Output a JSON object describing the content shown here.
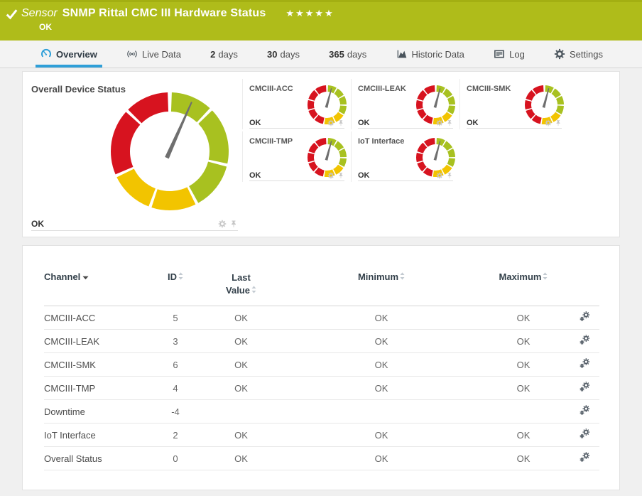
{
  "colors": {
    "header_bg": "#afbc1a",
    "accent_blue": "#2f9fd8",
    "gauge_green": "#a8c120",
    "gauge_yellow": "#f2c400",
    "gauge_red": "#d7131f",
    "needle_gray": "#6f6f6f",
    "tab_icon_gray": "#4a545c",
    "muted_icon_gray": "#c6c6c6",
    "table_icon_gray": "#4d5761",
    "sort_icon_gray": "#c3cad1",
    "sort_caret_dark": "#4a4a4a"
  },
  "header": {
    "kind": "Sensor",
    "title": "SNMP Rittal CMC III Hardware Status",
    "status": "OK",
    "stars": "★★★★★"
  },
  "tabs": [
    {
      "id": "overview",
      "label": "Overview",
      "icon": "gauge-icon",
      "active": true
    },
    {
      "id": "live-data",
      "label": "Live Data",
      "icon": "broadcast-icon",
      "active": false
    },
    {
      "id": "2-days",
      "bold": "2",
      "label": "days",
      "active": false
    },
    {
      "id": "30-days",
      "bold": "30",
      "label": "days",
      "active": false
    },
    {
      "id": "365-days",
      "bold": "365",
      "label": "days",
      "active": false
    },
    {
      "id": "historic-data",
      "label": "Historic Data",
      "icon": "area-chart-icon",
      "active": false
    },
    {
      "id": "log",
      "label": "Log",
      "icon": "log-icon",
      "active": false
    },
    {
      "id": "settings",
      "label": "Settings",
      "icon": "gear-icon",
      "active": false
    }
  ],
  "overview": {
    "main_gauge": {
      "title": "Overall Device Status",
      "status": "OK",
      "needle_deg": 24,
      "segments": [
        {
          "color": "green",
          "start": 2,
          "end": 43
        },
        {
          "color": "green",
          "start": 46,
          "end": 102
        },
        {
          "color": "green",
          "start": 105,
          "end": 151
        },
        {
          "color": "yellow",
          "start": 154,
          "end": 198
        },
        {
          "color": "yellow",
          "start": 201,
          "end": 244
        },
        {
          "color": "red",
          "start": 247,
          "end": 312
        },
        {
          "color": "red",
          "start": 315,
          "end": 358
        }
      ]
    },
    "mini_needle_deg": 15,
    "mini_segments": [
      {
        "color": "green",
        "start": 3,
        "end": 29
      },
      {
        "color": "green",
        "start": 33,
        "end": 59
      },
      {
        "color": "green",
        "start": 63,
        "end": 89
      },
      {
        "color": "green",
        "start": 93,
        "end": 119
      },
      {
        "color": "yellow",
        "start": 123,
        "end": 152
      },
      {
        "color": "yellow",
        "start": 156,
        "end": 188
      },
      {
        "color": "red",
        "start": 192,
        "end": 220
      },
      {
        "color": "red",
        "start": 224,
        "end": 252
      },
      {
        "color": "red",
        "start": 256,
        "end": 284
      },
      {
        "color": "red",
        "start": 288,
        "end": 319
      },
      {
        "color": "red",
        "start": 323,
        "end": 357
      }
    ],
    "tiles": [
      {
        "title": "CMCIII-ACC",
        "status": "OK"
      },
      {
        "title": "CMCIII-LEAK",
        "status": "OK"
      },
      {
        "title": "CMCIII-SMK",
        "status": "OK"
      },
      {
        "title": "CMCIII-TMP",
        "status": "OK"
      },
      {
        "title": "IoT Interface",
        "status": "OK"
      }
    ]
  },
  "table": {
    "columns": [
      {
        "key": "channel",
        "label": "Channel",
        "sort": "active"
      },
      {
        "key": "id",
        "label": "ID",
        "sort": "both"
      },
      {
        "key": "last-value",
        "label": "Last Value",
        "sort": "both",
        "wrap": true
      },
      {
        "key": "minimum",
        "label": "Minimum",
        "sort": "both"
      },
      {
        "key": "maximum",
        "label": "Maximum",
        "sort": "both"
      },
      {
        "key": "actions",
        "label": "",
        "sort": "none"
      }
    ],
    "rows": [
      {
        "channel": "CMCIII-ACC",
        "id": "5",
        "last": "OK",
        "min": "OK",
        "max": "OK"
      },
      {
        "channel": "CMCIII-LEAK",
        "id": "3",
        "last": "OK",
        "min": "OK",
        "max": "OK"
      },
      {
        "channel": "CMCIII-SMK",
        "id": "6",
        "last": "OK",
        "min": "OK",
        "max": "OK"
      },
      {
        "channel": "CMCIII-TMP",
        "id": "4",
        "last": "OK",
        "min": "OK",
        "max": "OK"
      },
      {
        "channel": "Downtime",
        "id": "-4",
        "last": "",
        "min": "",
        "max": ""
      },
      {
        "channel": "IoT Interface",
        "id": "2",
        "last": "OK",
        "min": "OK",
        "max": "OK"
      },
      {
        "channel": "Overall Status",
        "id": "0",
        "last": "OK",
        "min": "OK",
        "max": "OK"
      }
    ]
  }
}
